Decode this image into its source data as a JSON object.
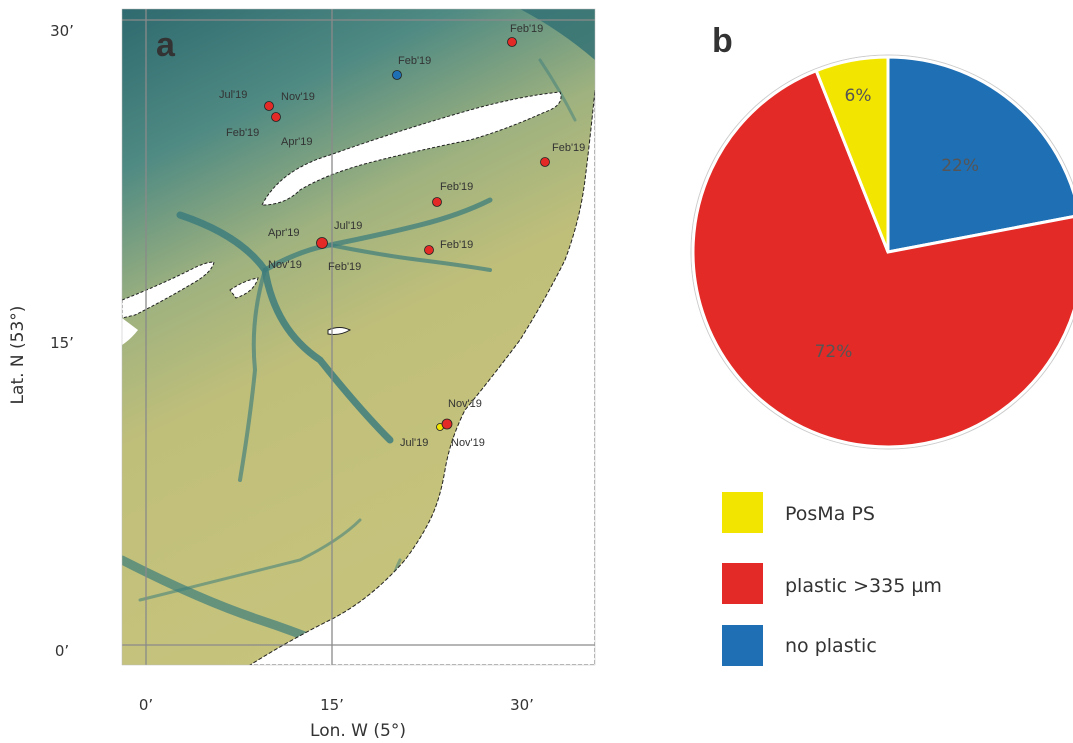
{
  "panel_a": {
    "label": "a",
    "x_axis_label": "Lon. W (5°)",
    "y_axis_label": "Lat. N (53°)",
    "x_ticks": [
      "0’",
      "15’",
      "30’"
    ],
    "y_ticks": [
      "30’",
      "15’",
      "0’"
    ],
    "colors": {
      "deep": "#2f6f73",
      "shallow": "#c4c27a",
      "land": "#ffffff",
      "grid": "#8a8a8a"
    },
    "sites": [
      {
        "name": "site-1",
        "result": "plastic",
        "labels": [
          "Feb'19"
        ]
      },
      {
        "name": "site-2",
        "result": "no-plastic",
        "labels": [
          "Feb'19"
        ]
      },
      {
        "name": "site-3",
        "result": "plastic",
        "labels": [
          "Jul'19",
          "Nov'19",
          "Feb'19",
          "Apr'19"
        ]
      },
      {
        "name": "site-4",
        "result": "plastic",
        "labels": [
          "Feb'19"
        ]
      },
      {
        "name": "site-5",
        "result": "plastic",
        "labels": [
          "Feb'19"
        ]
      },
      {
        "name": "site-6",
        "result": "plastic",
        "labels": [
          "Jul'19",
          "Apr'19",
          "Nov'19",
          "Feb'19"
        ]
      },
      {
        "name": "site-7",
        "result": "plastic",
        "labels": [
          "Feb'19"
        ]
      },
      {
        "name": "site-8",
        "result": "plastic",
        "labels": [
          "Nov'19",
          "Jul'19",
          "Nov'19"
        ]
      }
    ]
  },
  "panel_b": {
    "label": "b",
    "pie": [
      {
        "name": "no plastic",
        "value": 22,
        "label": "22%",
        "color": "#1f6fb5"
      },
      {
        "name": "plastic >335 µm",
        "value": 72,
        "label": "72%",
        "color": "#e32a26"
      },
      {
        "name": "PosMa PS",
        "value": 6,
        "label": "6%",
        "color": "#f2e500"
      }
    ],
    "legend": [
      {
        "label": "PosMa PS",
        "color": "#f2e500"
      },
      {
        "label": "plastic >335 µm",
        "color": "#e32a26"
      },
      {
        "label": "no plastic",
        "color": "#1f6fb5"
      }
    ]
  }
}
